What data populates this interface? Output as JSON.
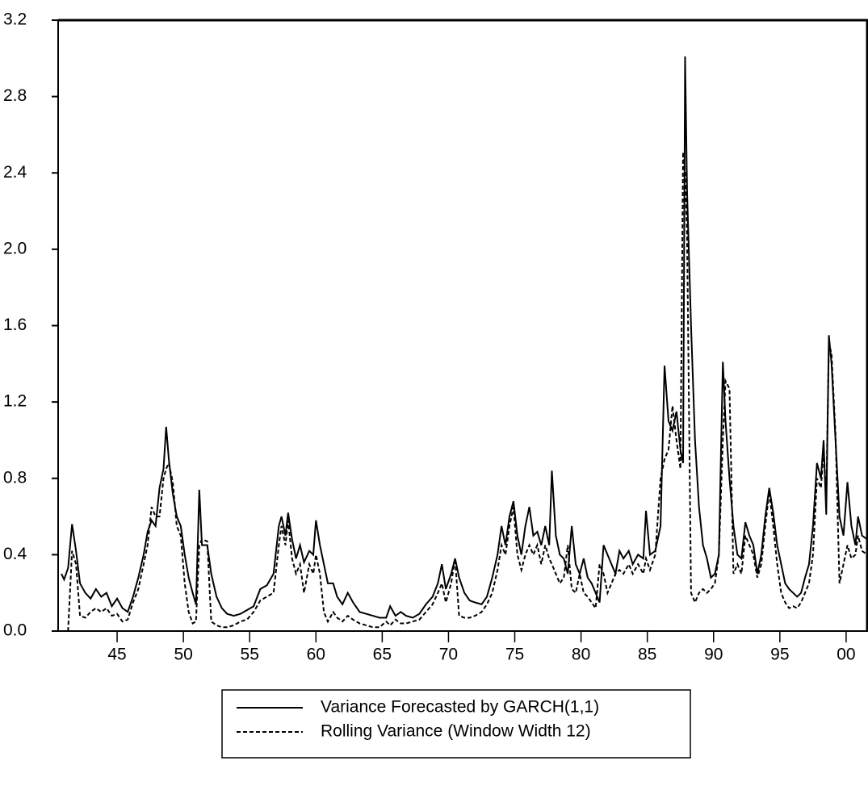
{
  "chart_data": {
    "type": "line",
    "x": [
      1940.8,
      1941.0,
      1941.3,
      1941.6,
      1941.9,
      1942.2,
      1942.6,
      1943.0,
      1943.4,
      1943.8,
      1944.2,
      1944.6,
      1945.0,
      1945.4,
      1945.8,
      1946.2,
      1946.6,
      1947.0,
      1947.3,
      1947.6,
      1947.9,
      1948.2,
      1948.5,
      1948.7,
      1948.9,
      1949.2,
      1949.5,
      1949.8,
      1950.1,
      1950.4,
      1950.7,
      1950.95,
      1951.2,
      1951.4,
      1951.8,
      1952.1,
      1952.5,
      1952.9,
      1953.3,
      1953.8,
      1954.3,
      1954.8,
      1955.3,
      1955.8,
      1956.3,
      1956.8,
      1957.2,
      1957.4,
      1957.7,
      1957.9,
      1958.2,
      1958.5,
      1958.8,
      1959.1,
      1959.5,
      1959.8,
      1960.0,
      1960.3,
      1960.6,
      1960.9,
      1961.3,
      1961.6,
      1962.0,
      1962.4,
      1962.8,
      1963.3,
      1963.8,
      1964.3,
      1964.8,
      1965.3,
      1965.6,
      1966.0,
      1966.4,
      1966.8,
      1967.3,
      1967.8,
      1968.3,
      1968.8,
      1969.2,
      1969.5,
      1969.8,
      1970.2,
      1970.5,
      1970.8,
      1971.2,
      1971.6,
      1972.0,
      1972.5,
      1972.9,
      1973.3,
      1973.7,
      1974.0,
      1974.3,
      1974.6,
      1974.9,
      1975.2,
      1975.5,
      1975.8,
      1976.1,
      1976.4,
      1976.7,
      1977.0,
      1977.3,
      1977.6,
      1977.8,
      1978.1,
      1978.4,
      1978.7,
      1979.0,
      1979.3,
      1979.6,
      1979.9,
      1980.2,
      1980.5,
      1980.8,
      1981.1,
      1981.4,
      1981.7,
      1982.0,
      1982.3,
      1982.6,
      1982.9,
      1983.2,
      1983.6,
      1983.9,
      1984.3,
      1984.7,
      1984.9,
      1985.2,
      1985.6,
      1986.0,
      1986.3,
      1986.6,
      1986.9,
      1987.2,
      1987.5,
      1987.7,
      1987.85,
      1988.0,
      1988.3,
      1988.6,
      1988.9,
      1989.2,
      1989.5,
      1989.8,
      1990.1,
      1990.4,
      1990.7,
      1990.9,
      1991.2,
      1991.5,
      1991.8,
      1992.1,
      1992.4,
      1992.7,
      1993.0,
      1993.3,
      1993.6,
      1993.9,
      1994.2,
      1994.5,
      1994.8,
      1995.1,
      1995.4,
      1995.7,
      1996.0,
      1996.3,
      1996.6,
      1996.9,
      1997.2,
      1997.5,
      1997.8,
      1998.1,
      1998.3,
      1998.5,
      1998.7,
      1998.9,
      1999.2,
      1999.5,
      1999.8,
      2000.1,
      2000.4,
      2000.7,
      2000.9,
      2001.2,
      2001.6
    ],
    "series": [
      {
        "name": "Variance Forecasted by GARCH(1,1)",
        "color": "#000000",
        "dash": "solid",
        "values": [
          0.3,
          0.27,
          0.33,
          0.56,
          0.42,
          0.25,
          0.2,
          0.17,
          0.22,
          0.18,
          0.2,
          0.13,
          0.17,
          0.12,
          0.1,
          0.18,
          0.28,
          0.4,
          0.52,
          0.58,
          0.55,
          0.75,
          0.85,
          1.07,
          0.9,
          0.72,
          0.6,
          0.55,
          0.4,
          0.28,
          0.2,
          0.14,
          0.74,
          0.45,
          0.45,
          0.3,
          0.18,
          0.12,
          0.09,
          0.08,
          0.09,
          0.11,
          0.13,
          0.22,
          0.24,
          0.3,
          0.55,
          0.6,
          0.5,
          0.62,
          0.48,
          0.38,
          0.45,
          0.36,
          0.42,
          0.4,
          0.58,
          0.45,
          0.35,
          0.25,
          0.25,
          0.18,
          0.14,
          0.2,
          0.15,
          0.1,
          0.09,
          0.08,
          0.07,
          0.07,
          0.13,
          0.08,
          0.1,
          0.08,
          0.07,
          0.09,
          0.14,
          0.18,
          0.25,
          0.35,
          0.22,
          0.3,
          0.38,
          0.28,
          0.2,
          0.16,
          0.15,
          0.14,
          0.18,
          0.28,
          0.4,
          0.55,
          0.45,
          0.6,
          0.68,
          0.5,
          0.4,
          0.55,
          0.65,
          0.5,
          0.52,
          0.45,
          0.55,
          0.45,
          0.84,
          0.5,
          0.4,
          0.38,
          0.3,
          0.55,
          0.35,
          0.3,
          0.38,
          0.28,
          0.25,
          0.2,
          0.15,
          0.45,
          0.4,
          0.35,
          0.3,
          0.42,
          0.38,
          0.42,
          0.35,
          0.4,
          0.38,
          0.63,
          0.4,
          0.42,
          0.55,
          1.39,
          1.1,
          1.05,
          1.15,
          0.95,
          0.88,
          3.01,
          2.3,
          1.6,
          1.0,
          0.65,
          0.45,
          0.38,
          0.28,
          0.3,
          0.4,
          1.41,
          1.1,
          0.8,
          0.55,
          0.4,
          0.38,
          0.57,
          0.5,
          0.45,
          0.3,
          0.4,
          0.6,
          0.75,
          0.62,
          0.45,
          0.35,
          0.25,
          0.22,
          0.2,
          0.18,
          0.2,
          0.28,
          0.35,
          0.55,
          0.88,
          0.8,
          1.0,
          0.61,
          1.55,
          1.4,
          1.0,
          0.6,
          0.5,
          0.78,
          0.55,
          0.45,
          0.6,
          0.5,
          0.48
        ]
      },
      {
        "name": "Rolling Variance (Window Width 12)",
        "color": "#000000",
        "dash": "dashed",
        "values": [
          0,
          0,
          0,
          0.42,
          0.35,
          0.08,
          0.07,
          0.1,
          0.12,
          0.1,
          0.12,
          0.08,
          0.09,
          0.05,
          0.06,
          0.15,
          0.22,
          0.35,
          0.45,
          0.65,
          0.6,
          0.6,
          0.8,
          0.85,
          0.88,
          0.78,
          0.55,
          0.5,
          0.25,
          0.1,
          0.04,
          0.05,
          0.45,
          0.48,
          0.47,
          0.05,
          0.03,
          0.02,
          0.02,
          0.03,
          0.05,
          0.06,
          0.1,
          0.16,
          0.18,
          0.2,
          0.45,
          0.55,
          0.45,
          0.58,
          0.38,
          0.3,
          0.35,
          0.2,
          0.35,
          0.3,
          0.4,
          0.3,
          0.1,
          0.05,
          0.1,
          0.07,
          0.05,
          0.08,
          0.06,
          0.04,
          0.03,
          0.02,
          0.02,
          0.05,
          0.03,
          0.06,
          0.04,
          0.04,
          0.05,
          0.06,
          0.1,
          0.14,
          0.2,
          0.25,
          0.15,
          0.25,
          0.38,
          0.08,
          0.07,
          0.07,
          0.08,
          0.1,
          0.14,
          0.2,
          0.32,
          0.45,
          0.4,
          0.55,
          0.65,
          0.4,
          0.32,
          0.4,
          0.45,
          0.4,
          0.45,
          0.35,
          0.45,
          0.38,
          0.35,
          0.3,
          0.25,
          0.28,
          0.45,
          0.22,
          0.2,
          0.3,
          0.2,
          0.18,
          0.15,
          0.12,
          0.35,
          0.3,
          0.2,
          0.25,
          0.3,
          0.32,
          0.3,
          0.35,
          0.3,
          0.35,
          0.3,
          0.38,
          0.32,
          0.4,
          0.8,
          0.9,
          0.95,
          1.18,
          1.0,
          0.85,
          2.51,
          2.4,
          2.07,
          0.2,
          0.15,
          0.2,
          0.22,
          0.2,
          0.22,
          0.25,
          0.4,
          1.0,
          1.31,
          1.27,
          0.3,
          0.35,
          0.3,
          0.5,
          0.45,
          0.4,
          0.28,
          0.35,
          0.55,
          0.73,
          0.55,
          0.35,
          0.2,
          0.15,
          0.12,
          0.13,
          0.12,
          0.15,
          0.2,
          0.25,
          0.4,
          0.8,
          0.75,
          0.95,
          0.7,
          1.51,
          1.45,
          1.03,
          0.25,
          0.35,
          0.45,
          0.38,
          0.4,
          0.5,
          0.42,
          0.4
        ]
      }
    ],
    "xlim": [
      1940.55,
      2001.65
    ],
    "xticks": [
      {
        "value": 1945,
        "label": "45"
      },
      {
        "value": 1950,
        "label": "50"
      },
      {
        "value": 1955,
        "label": "55"
      },
      {
        "value": 1960,
        "label": "60"
      },
      {
        "value": 1965,
        "label": "65"
      },
      {
        "value": 1970,
        "label": "70"
      },
      {
        "value": 1975,
        "label": "75"
      },
      {
        "value": 1980,
        "label": "80"
      },
      {
        "value": 1985,
        "label": "85"
      },
      {
        "value": 1990,
        "label": "90"
      },
      {
        "value": 1995,
        "label": "95"
      },
      {
        "value": 2000,
        "label": "00"
      }
    ],
    "ylim": [
      0,
      3.2
    ],
    "yticks": [
      {
        "value": 0,
        "label": "0.0"
      },
      0.4,
      0.8,
      1.2,
      1.6,
      {
        "value": 2,
        "label": "2.0"
      },
      2.4,
      2.8,
      3.2
    ],
    "grid": false,
    "legend": "bottom"
  }
}
